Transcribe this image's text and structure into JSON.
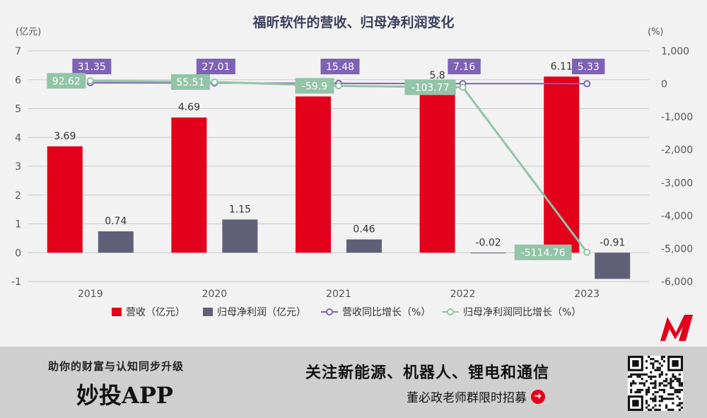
{
  "chart_data": {
    "type": "bar+line",
    "title": "福昕软件的营收、归母净利润变化",
    "left_unit": "(亿元)",
    "right_unit": "(%)",
    "categories": [
      "2019",
      "2020",
      "2021",
      "2022",
      "2023"
    ],
    "left_axis": {
      "ylim": [
        -1,
        7
      ],
      "ticks": [
        "-1",
        "0",
        "1",
        "2",
        "3",
        "4",
        "5",
        "6",
        "7"
      ]
    },
    "right_axis": {
      "ylim": [
        -6000,
        1000
      ],
      "ticks": [
        "-6,000",
        "-5,000",
        "-4,000",
        "-3,000",
        "-2,000",
        "-1,000",
        "0",
        "1,000"
      ]
    },
    "series": [
      {
        "name": "营收（亿元）",
        "kind": "bar",
        "axis": "left",
        "color": "#e3001b",
        "values": [
          3.69,
          4.69,
          5.42,
          5.8,
          6.11
        ],
        "labels": [
          "3.69",
          "4.69",
          "",
          "5.8",
          "6.11"
        ]
      },
      {
        "name": "归母净利润（亿元）",
        "kind": "bar",
        "axis": "left",
        "color": "#5f6078",
        "values": [
          0.74,
          1.15,
          0.46,
          -0.02,
          -0.91
        ],
        "labels": [
          "0.74",
          "1.15",
          "0.46",
          "-0.02",
          "-0.91"
        ]
      },
      {
        "name": "营收同比增长（%）",
        "kind": "line",
        "axis": "right",
        "color": "#7e62b5",
        "values": [
          31.35,
          27.01,
          15.48,
          7.16,
          5.33
        ],
        "labels": [
          "31.35",
          "27.01",
          "15.48",
          "7.16",
          "5.33"
        ]
      },
      {
        "name": "归母净利润同比增长（%）",
        "kind": "line",
        "axis": "right",
        "color": "#92c4a8",
        "values": [
          92.62,
          55.51,
          -59.9,
          -103.77,
          -5114.76
        ],
        "labels": [
          "92.62",
          "55.51",
          "-59.9",
          "-103.77",
          "-5114.76"
        ]
      }
    ],
    "legend_position": "bottom",
    "grid": true
  },
  "footer": {
    "slogan": "助你的财富与认知同步升级",
    "brand": "妙投APP",
    "follow": "关注新能源、机器人、锂电和通信",
    "recruit": "董必政老师群限时招募"
  },
  "logo_text": "M"
}
